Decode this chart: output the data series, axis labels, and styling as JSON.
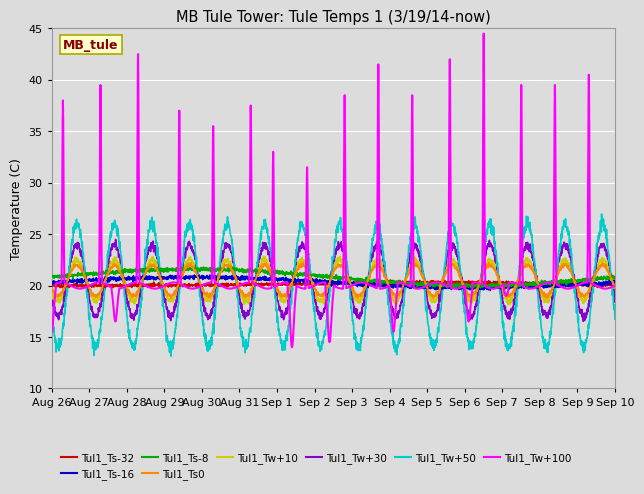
{
  "title": "MB Tule Tower: Tule Temps 1 (3/19/14-now)",
  "ylabel": "Temperature (C)",
  "ylim": [
    10,
    45
  ],
  "yticks": [
    10,
    15,
    20,
    25,
    30,
    35,
    40,
    45
  ],
  "bg_color": "#dcdcdc",
  "series": [
    {
      "label": "Tul1_Ts-32",
      "color": "#cc0000",
      "lw": 1.2,
      "zorder": 4
    },
    {
      "label": "Tul1_Ts-16",
      "color": "#0000cc",
      "lw": 1.2,
      "zorder": 4
    },
    {
      "label": "Tul1_Ts-8",
      "color": "#00aa00",
      "lw": 1.2,
      "zorder": 4
    },
    {
      "label": "Tul1_Ts0",
      "color": "#ff8800",
      "lw": 1.2,
      "zorder": 4
    },
    {
      "label": "Tul1_Tw+10",
      "color": "#cccc00",
      "lw": 1.2,
      "zorder": 3
    },
    {
      "label": "Tul1_Tw+30",
      "color": "#8800cc",
      "lw": 1.2,
      "zorder": 3
    },
    {
      "label": "Tul1_Tw+50",
      "color": "#00cccc",
      "lw": 1.2,
      "zorder": 3
    },
    {
      "label": "Tul1_Tw+100",
      "color": "#ff00ff",
      "lw": 1.5,
      "zorder": 5
    }
  ],
  "xtick_labels": [
    "Aug 26",
    "Aug 27",
    "Aug 28",
    "Aug 29",
    "Aug 30",
    "Aug 31",
    "Sep 1",
    "Sep 2",
    "Sep 3",
    "Sep 4",
    "Sep 5",
    "Sep 6",
    "Sep 7",
    "Sep 8",
    "Sep 9",
    "Sep 10"
  ],
  "station_label": "MB_tule",
  "station_label_color": "#880000",
  "station_bg_color": "#ffffcc",
  "legend_fontsize": 7.5,
  "title_fontsize": 10.5
}
